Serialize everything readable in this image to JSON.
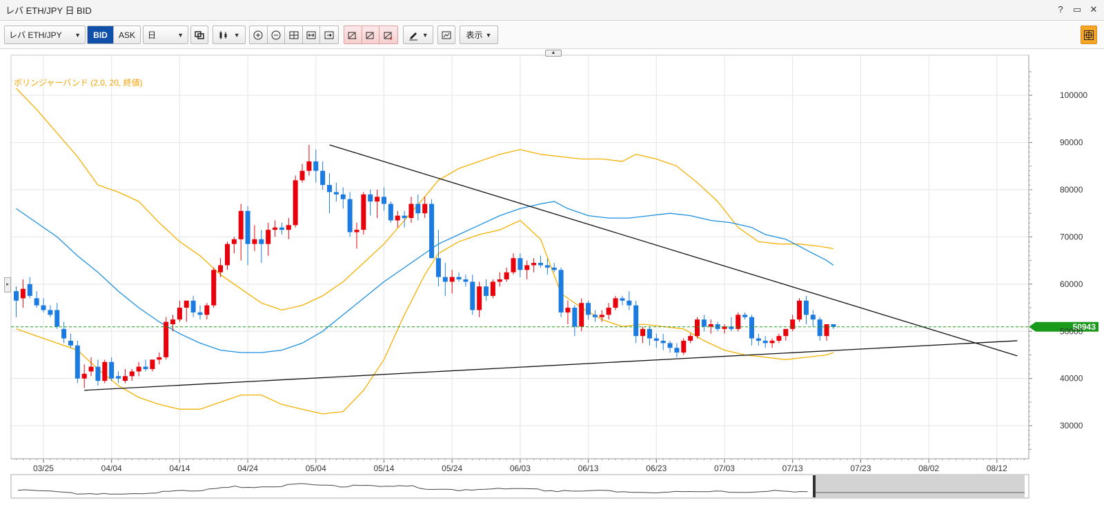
{
  "window": {
    "title": "レバ ETH/JPY 日 BID",
    "help": "?",
    "restore": "▭",
    "close": "✕"
  },
  "toolbar": {
    "symbol": "レバ ETH/JPY",
    "bid_label": "BID",
    "ask_label": "ASK",
    "period": "日",
    "display_label": "表示"
  },
  "indicator": {
    "label": "ボリンジャーバンド (2.0, 20, 終値)",
    "color": "#f5a300"
  },
  "current_price": {
    "label": "50943",
    "value": 50943,
    "color": "#1a9a1a"
  },
  "colors": {
    "up": "#e8000a",
    "down": "#1b7be0",
    "ma": "#1b8fe0",
    "band": "#f5b000",
    "trendline": "#111111"
  },
  "chart_data": {
    "type": "candlestick",
    "y_range": [
      23000,
      108500
    ],
    "y_ticks": [
      30000,
      40000,
      50000,
      60000,
      70000,
      80000,
      90000,
      100000
    ],
    "x_ticks": [
      "03/25",
      "04/04",
      "04/14",
      "04/24",
      "05/04",
      "05/14",
      "05/24",
      "06/03",
      "06/13",
      "06/23",
      "07/03",
      "07/13",
      "07/23",
      "08/02",
      "08/12"
    ],
    "first_date": "03/21",
    "candles": [
      [
        58500,
        59500,
        53000,
        56500
      ],
      [
        57000,
        61000,
        55000,
        59000
      ],
      [
        60000,
        61500,
        57000,
        57500
      ],
      [
        57000,
        58500,
        55000,
        55500
      ],
      [
        55500,
        57000,
        54000,
        54500
      ],
      [
        54500,
        55500,
        53000,
        53500
      ],
      [
        54500,
        56000,
        50500,
        51000
      ],
      [
        50500,
        52000,
        47500,
        48500
      ],
      [
        48000,
        49500,
        46500,
        47000
      ],
      [
        47000,
        48000,
        39000,
        40000
      ],
      [
        40000,
        43000,
        38000,
        41000
      ],
      [
        41500,
        44500,
        40500,
        42500
      ],
      [
        42500,
        44000,
        38500,
        39500
      ],
      [
        39500,
        44000,
        39000,
        43500
      ],
      [
        43500,
        44500,
        39500,
        40000
      ],
      [
        40500,
        41500,
        39000,
        40000
      ],
      [
        39500,
        42000,
        39000,
        40500
      ],
      [
        40500,
        42000,
        39500,
        41500
      ],
      [
        41500,
        43500,
        40500,
        42500
      ],
      [
        42500,
        44000,
        41500,
        42000
      ],
      [
        42000,
        44000,
        41500,
        44000
      ],
      [
        44000,
        45500,
        43000,
        44500
      ],
      [
        44500,
        53000,
        44000,
        52000
      ],
      [
        51500,
        53500,
        50000,
        52500
      ],
      [
        52500,
        56500,
        52000,
        55000
      ],
      [
        55000,
        56500,
        52000,
        56500
      ],
      [
        56500,
        57500,
        53000,
        54000
      ],
      [
        54000,
        55500,
        52500,
        53500
      ],
      [
        53500,
        56000,
        52500,
        55500
      ],
      [
        55500,
        63500,
        55000,
        63000
      ],
      [
        62500,
        65500,
        61500,
        64000
      ],
      [
        64000,
        69000,
        63000,
        68500
      ],
      [
        68500,
        70000,
        66500,
        69500
      ],
      [
        69500,
        77000,
        65000,
        75500
      ],
      [
        75500,
        76500,
        64000,
        68500
      ],
      [
        68500,
        72500,
        67000,
        69500
      ],
      [
        69500,
        71500,
        64500,
        68500
      ],
      [
        68500,
        73000,
        66000,
        71500
      ],
      [
        71500,
        73500,
        70000,
        72000
      ],
      [
        72000,
        73000,
        70500,
        71500
      ],
      [
        71500,
        74000,
        69500,
        72500
      ],
      [
        72500,
        83000,
        72000,
        82000
      ],
      [
        82000,
        85500,
        81500,
        84000
      ],
      [
        84000,
        89500,
        83000,
        86000
      ],
      [
        86000,
        88500,
        81500,
        84000
      ],
      [
        84000,
        86000,
        80000,
        81000
      ],
      [
        81000,
        83500,
        75000,
        79500
      ],
      [
        79500,
        81500,
        77500,
        79000
      ],
      [
        79000,
        80500,
        76000,
        78000
      ],
      [
        78000,
        79500,
        70000,
        71000
      ],
      [
        71000,
        73000,
        67500,
        71500
      ],
      [
        71500,
        79500,
        70500,
        79000
      ],
      [
        79000,
        80000,
        74500,
        77500
      ],
      [
        77500,
        80000,
        74000,
        78500
      ],
      [
        78500,
        80500,
        75500,
        77000
      ],
      [
        77000,
        77500,
        73000,
        73500
      ],
      [
        73500,
        75500,
        72000,
        74500
      ],
      [
        74500,
        75500,
        72000,
        74000
      ],
      [
        74000,
        78500,
        73000,
        77000
      ],
      [
        77000,
        79000,
        73500,
        75000
      ],
      [
        75000,
        78500,
        74000,
        77000
      ],
      [
        77000,
        78000,
        65500,
        65500
      ],
      [
        65500,
        71500,
        59500,
        61500
      ],
      [
        61500,
        64500,
        57500,
        60500
      ],
      [
        60500,
        63000,
        58000,
        61500
      ],
      [
        61500,
        62500,
        60500,
        61000
      ],
      [
        61000,
        62000,
        59500,
        60500
      ],
      [
        60500,
        62000,
        53500,
        54500
      ],
      [
        54500,
        60500,
        53000,
        59500
      ],
      [
        59500,
        61000,
        56500,
        57500
      ],
      [
        57500,
        61000,
        57000,
        60500
      ],
      [
        60500,
        62500,
        59500,
        61000
      ],
      [
        61000,
        63500,
        60500,
        62500
      ],
      [
        62500,
        66500,
        62000,
        65500
      ],
      [
        65500,
        66500,
        61500,
        63000
      ],
      [
        63000,
        65000,
        61000,
        64000
      ],
      [
        64000,
        65500,
        62500,
        64500
      ],
      [
        64500,
        66000,
        63500,
        64000
      ],
      [
        64000,
        65500,
        62000,
        63500
      ],
      [
        63500,
        64500,
        62500,
        63000
      ],
      [
        63000,
        63500,
        53000,
        54000
      ],
      [
        54000,
        56500,
        51500,
        55000
      ],
      [
        55000,
        55500,
        49000,
        51000
      ],
      [
        51000,
        57000,
        50000,
        56000
      ],
      [
        56000,
        56500,
        52500,
        53500
      ],
      [
        53500,
        54500,
        52000,
        53000
      ],
      [
        53000,
        54500,
        52000,
        53500
      ],
      [
        53500,
        56000,
        52500,
        55000
      ],
      [
        55000,
        57500,
        54500,
        57000
      ],
      [
        57000,
        57500,
        55500,
        56500
      ],
      [
        56500,
        58500,
        54500,
        55500
      ],
      [
        55500,
        56500,
        47500,
        49000
      ],
      [
        49000,
        51000,
        47500,
        50500
      ],
      [
        50500,
        51000,
        47000,
        48500
      ],
      [
        48500,
        49500,
        46500,
        48000
      ],
      [
        48000,
        49500,
        46000,
        47500
      ],
      [
        47500,
        48000,
        45500,
        46500
      ],
      [
        46500,
        47500,
        44500,
        45500
      ],
      [
        45500,
        48500,
        45000,
        48000
      ],
      [
        48000,
        49500,
        47500,
        49000
      ],
      [
        49000,
        53000,
        48500,
        52500
      ],
      [
        52500,
        53500,
        50000,
        51000
      ],
      [
        51000,
        52500,
        49500,
        51500
      ],
      [
        51500,
        52000,
        50000,
        50500
      ],
      [
        50500,
        51500,
        49500,
        51000
      ],
      [
        51000,
        53000,
        50000,
        50500
      ],
      [
        50500,
        54000,
        50000,
        53500
      ],
      [
        53500,
        54000,
        52500,
        53000
      ],
      [
        53000,
        53500,
        47000,
        48500
      ],
      [
        48500,
        49500,
        47000,
        48000
      ],
      [
        48000,
        49000,
        46500,
        47500
      ],
      [
        47500,
        48500,
        46500,
        48000
      ],
      [
        48000,
        49500,
        47500,
        49000
      ],
      [
        49000,
        50500,
        48000,
        50500
      ],
      [
        50500,
        53500,
        50000,
        52500
      ],
      [
        52500,
        57000,
        52000,
        56500
      ],
      [
        56500,
        57500,
        51500,
        53500
      ],
      [
        53500,
        54500,
        51000,
        52500
      ],
      [
        52500,
        53000,
        48000,
        49000
      ],
      [
        49000,
        51500,
        48000,
        51500
      ],
      [
        51500,
        51500,
        50500,
        50943
      ]
    ],
    "ma20": [
      [
        0,
        76000
      ],
      [
        3,
        73000
      ],
      [
        6,
        70000
      ],
      [
        9,
        66000
      ],
      [
        12,
        62500
      ],
      [
        15,
        58500
      ],
      [
        18,
        55000
      ],
      [
        21,
        52000
      ],
      [
        24,
        49500
      ],
      [
        27,
        47500
      ],
      [
        30,
        46000
      ],
      [
        33,
        45500
      ],
      [
        36,
        45500
      ],
      [
        39,
        46000
      ],
      [
        42,
        47500
      ],
      [
        45,
        50000
      ],
      [
        48,
        53500
      ],
      [
        51,
        57000
      ],
      [
        54,
        60500
      ],
      [
        57,
        63500
      ],
      [
        60,
        66500
      ],
      [
        62,
        68500
      ],
      [
        65,
        70500
      ],
      [
        68,
        72500
      ],
      [
        71,
        74500
      ],
      [
        74,
        76000
      ],
      [
        77,
        77000
      ],
      [
        79,
        77500
      ],
      [
        81,
        76000
      ],
      [
        84,
        74500
      ],
      [
        87,
        74000
      ],
      [
        90,
        74000
      ],
      [
        93,
        74500
      ],
      [
        96,
        75000
      ],
      [
        99,
        74500
      ],
      [
        102,
        73500
      ],
      [
        105,
        73000
      ],
      [
        108,
        72000
      ],
      [
        110,
        70500
      ],
      [
        113,
        69500
      ],
      [
        115,
        68000
      ],
      [
        117,
        66500
      ],
      [
        119,
        65000
      ],
      [
        120,
        64000
      ]
    ],
    "band_upper": [
      [
        0,
        101500
      ],
      [
        3,
        97000
      ],
      [
        6,
        92000
      ],
      [
        9,
        87000
      ],
      [
        12,
        81000
      ],
      [
        15,
        79500
      ],
      [
        18,
        77500
      ],
      [
        21,
        73000
      ],
      [
        24,
        69000
      ],
      [
        27,
        66000
      ],
      [
        30,
        62000
      ],
      [
        33,
        59000
      ],
      [
        36,
        56000
      ],
      [
        39,
        54500
      ],
      [
        42,
        55500
      ],
      [
        45,
        57500
      ],
      [
        48,
        60500
      ],
      [
        51,
        64500
      ],
      [
        54,
        68500
      ],
      [
        57,
        73500
      ],
      [
        60,
        78500
      ],
      [
        62,
        82000
      ],
      [
        65,
        84500
      ],
      [
        68,
        86000
      ],
      [
        71,
        87500
      ],
      [
        74,
        88500
      ],
      [
        77,
        87500
      ],
      [
        80,
        87000
      ],
      [
        83,
        86500
      ],
      [
        86,
        86500
      ],
      [
        89,
        86000
      ],
      [
        91,
        87500
      ],
      [
        94,
        86500
      ],
      [
        97,
        85000
      ],
      [
        100,
        81500
      ],
      [
        103,
        77500
      ],
      [
        106,
        72000
      ],
      [
        109,
        69000
      ],
      [
        112,
        68500
      ],
      [
        115,
        68500
      ],
      [
        118,
        68000
      ],
      [
        120,
        67500
      ]
    ],
    "band_lower": [
      [
        0,
        50500
      ],
      [
        3,
        49000
      ],
      [
        6,
        47500
      ],
      [
        9,
        46000
      ],
      [
        12,
        42000
      ],
      [
        15,
        38500
      ],
      [
        18,
        36000
      ],
      [
        21,
        34500
      ],
      [
        24,
        33500
      ],
      [
        27,
        33500
      ],
      [
        30,
        35000
      ],
      [
        33,
        36500
      ],
      [
        36,
        36500
      ],
      [
        39,
        34500
      ],
      [
        42,
        33500
      ],
      [
        45,
        32500
      ],
      [
        48,
        33000
      ],
      [
        51,
        37500
      ],
      [
        54,
        44000
      ],
      [
        57,
        53500
      ],
      [
        60,
        62000
      ],
      [
        62,
        66500
      ],
      [
        65,
        69000
      ],
      [
        68,
        70500
      ],
      [
        71,
        71500
      ],
      [
        74,
        73500
      ],
      [
        77,
        69500
      ],
      [
        80,
        58000
      ],
      [
        83,
        55000
      ],
      [
        86,
        52500
      ],
      [
        89,
        51000
      ],
      [
        92,
        51500
      ],
      [
        95,
        51000
      ],
      [
        98,
        50500
      ],
      [
        101,
        48000
      ],
      [
        104,
        46000
      ],
      [
        107,
        45000
      ],
      [
        110,
        44500
      ],
      [
        113,
        44000
      ],
      [
        116,
        44500
      ],
      [
        119,
        45000
      ],
      [
        120,
        45500
      ]
    ],
    "trendlines": [
      {
        "from": {
          "date": "05/06",
          "value": 89500
        },
        "to": {
          "date": "08/15",
          "value": 44800
        }
      },
      {
        "from": {
          "date": "03/31",
          "value": 37500
        },
        "to": {
          "date": "08/15",
          "value": 48000
        }
      }
    ]
  }
}
